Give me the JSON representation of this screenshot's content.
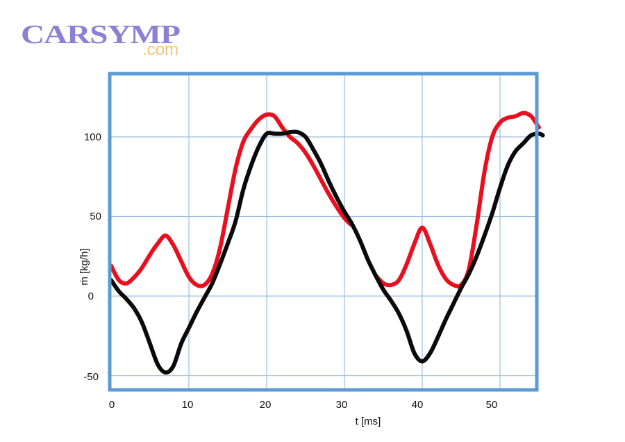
{
  "logo": {
    "main": "CARSYMP",
    "sub": ".com",
    "main_color": "#8a80d6",
    "sub_color": "#f4c27a"
  },
  "chart": {
    "frame_color": "#5b9bd5",
    "grid_color": "#9dbfdc",
    "xlabel": "t [ms]",
    "ylabel": "ṁ [kg/h]",
    "xticks": [
      "0",
      "10",
      "20",
      "30",
      "40",
      "50"
    ],
    "yticks": [
      "100",
      "50",
      "0",
      "-50"
    ]
  },
  "chart_data": {
    "type": "line",
    "title": "",
    "xlabel": "t [ms]",
    "ylabel": "ṁ [kg/h]",
    "xlim": [
      0,
      55.5
    ],
    "ylim": [
      -55,
      140
    ],
    "xticks": [
      0,
      10,
      20,
      30,
      40,
      50
    ],
    "yticks": [
      -50,
      0,
      50,
      100
    ],
    "grid": true,
    "legend": null,
    "series": [
      {
        "name": "red curve",
        "color": "#e8101e",
        "points": [
          [
            0,
            19
          ],
          [
            1,
            10
          ],
          [
            2,
            8
          ],
          [
            3,
            12
          ],
          [
            4,
            18
          ],
          [
            5,
            26
          ],
          [
            6,
            33
          ],
          [
            7,
            38
          ],
          [
            8,
            32
          ],
          [
            9,
            22
          ],
          [
            10,
            12
          ],
          [
            11,
            7
          ],
          [
            12,
            7
          ],
          [
            13,
            14
          ],
          [
            14,
            30
          ],
          [
            15,
            55
          ],
          [
            16,
            80
          ],
          [
            17,
            97
          ],
          [
            18,
            105
          ],
          [
            19,
            111
          ],
          [
            20,
            114
          ],
          [
            21,
            113
          ],
          [
            22,
            106
          ],
          [
            23,
            100
          ],
          [
            24,
            96
          ],
          [
            25,
            90
          ],
          [
            26,
            82
          ],
          [
            27,
            73
          ],
          [
            28,
            64
          ],
          [
            29,
            56
          ],
          [
            30,
            49
          ],
          [
            30.8,
            45
          ],
          null,
          [
            34,
            13
          ],
          [
            35,
            8
          ],
          [
            36,
            7
          ],
          [
            37,
            10
          ],
          [
            38,
            20
          ],
          [
            39,
            33
          ],
          [
            40,
            43
          ],
          [
            41,
            33
          ],
          [
            42,
            20
          ],
          [
            43,
            11
          ],
          [
            44,
            7
          ],
          [
            45,
            7
          ],
          [
            46,
            17
          ],
          [
            47,
            45
          ],
          [
            48,
            78
          ],
          [
            49,
            100
          ],
          [
            50,
            109
          ],
          [
            51,
            112
          ],
          [
            52,
            113
          ],
          [
            53,
            115
          ],
          [
            54,
            113
          ],
          [
            55,
            106
          ]
        ]
      },
      {
        "name": "black curve",
        "color": "#0a0a0a",
        "points": [
          [
            0,
            10
          ],
          [
            1,
            3
          ],
          [
            2,
            -2
          ],
          [
            3,
            -8
          ],
          [
            4,
            -17
          ],
          [
            5,
            -30
          ],
          [
            6,
            -43
          ],
          [
            7,
            -48
          ],
          [
            8,
            -44
          ],
          [
            9,
            -30
          ],
          [
            10,
            -20
          ],
          [
            11,
            -10
          ],
          [
            12,
            -1
          ],
          [
            13,
            8
          ],
          [
            14,
            20
          ],
          [
            15,
            33
          ],
          [
            16,
            47
          ],
          [
            17,
            67
          ],
          [
            18,
            82
          ],
          [
            19,
            94
          ],
          [
            20,
            102
          ],
          [
            21,
            102
          ],
          [
            22,
            102
          ],
          [
            23,
            103
          ],
          [
            24,
            103
          ],
          [
            25,
            100
          ],
          [
            26,
            92
          ],
          [
            27,
            83
          ],
          [
            28,
            72
          ],
          [
            29,
            62
          ],
          [
            30,
            53
          ],
          [
            31,
            45
          ],
          [
            32,
            35
          ],
          [
            33,
            23
          ],
          [
            34,
            13
          ],
          [
            35,
            4
          ],
          [
            36,
            -3
          ],
          [
            37,
            -11
          ],
          [
            38,
            -22
          ],
          [
            39,
            -36
          ],
          [
            40,
            -41
          ],
          [
            41,
            -36
          ],
          [
            42,
            -26
          ],
          [
            43,
            -15
          ],
          [
            44,
            -5
          ],
          [
            45,
            5
          ],
          [
            46,
            14
          ],
          [
            47,
            25
          ],
          [
            48,
            38
          ],
          [
            49,
            52
          ],
          [
            50,
            68
          ],
          [
            51,
            82
          ],
          [
            52,
            91
          ],
          [
            53,
            96
          ],
          [
            54,
            101
          ],
          [
            55,
            102
          ],
          [
            55.5,
            101
          ]
        ]
      }
    ]
  }
}
